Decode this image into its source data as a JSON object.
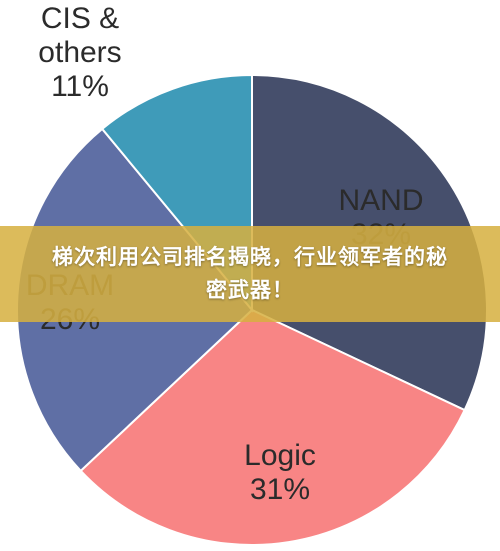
{
  "chart_data": {
    "type": "pie",
    "slices": [
      {
        "label_lines": [
          "NAND",
          "32%"
        ],
        "value": 32,
        "color": "#464f6c"
      },
      {
        "label_lines": [
          "Logic",
          "31%"
        ],
        "value": 31,
        "color": "#f88585"
      },
      {
        "label_lines": [
          "DRAM",
          "26%"
        ],
        "value": 26,
        "color": "#5f6fa5"
      },
      {
        "label_lines": [
          "CIS &",
          "others",
          "11%"
        ],
        "value": 11,
        "color": "#3f9bb9"
      }
    ]
  },
  "banner": {
    "title": "梯次利用公司排名揭晓，行业领军者的秘密武器！"
  }
}
